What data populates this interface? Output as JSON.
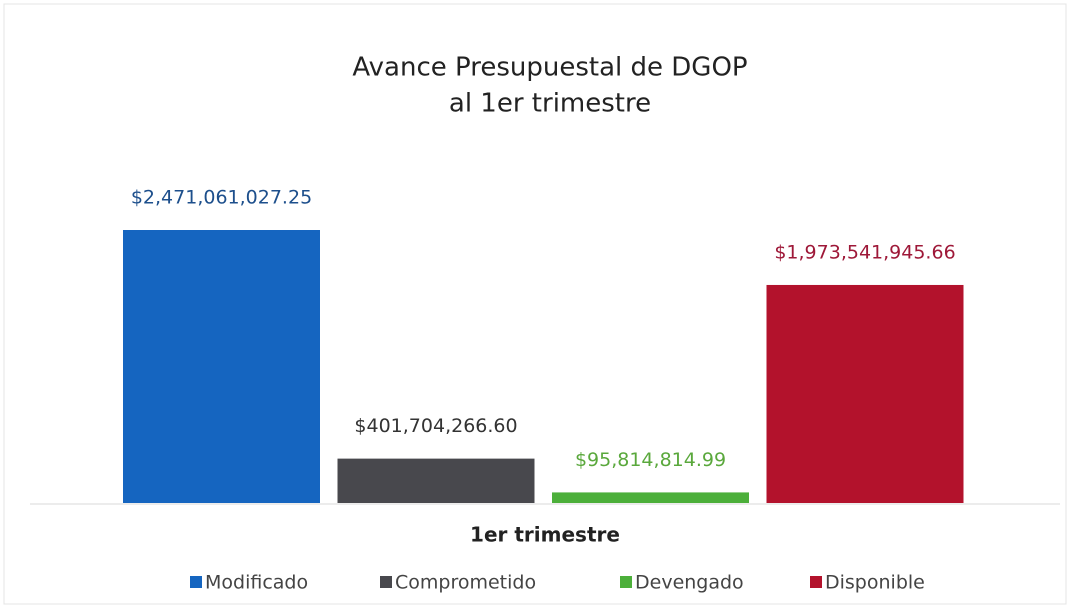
{
  "chart_data": {
    "type": "bar",
    "title": "Avance Presupuestal de DGOP",
    "subtitle": "al 1er trimestre",
    "categories": [
      "1er trimestre"
    ],
    "series": [
      {
        "name": "Modificado",
        "color": "#1565c0",
        "label_color": "#1d4f8c",
        "values": [
          2471061027.25
        ],
        "value_labels": [
          "$2,471,061,027.25"
        ]
      },
      {
        "name": "Comprometido",
        "color": "#48484d",
        "label_color": "#333333",
        "values": [
          401704266.6
        ],
        "value_labels": [
          "$401,704,266.60"
        ]
      },
      {
        "name": "Devengado",
        "color": "#4caf3a",
        "label_color": "#5aa83c",
        "values": [
          95814814.99
        ],
        "value_labels": [
          "$95,814,814.99"
        ]
      },
      {
        "name": "Disponible",
        "color": "#b3122c",
        "label_color": "#9e1838",
        "values": [
          1973541945.66
        ],
        "value_labels": [
          "$1,973,541,945.66"
        ]
      }
    ]
  }
}
